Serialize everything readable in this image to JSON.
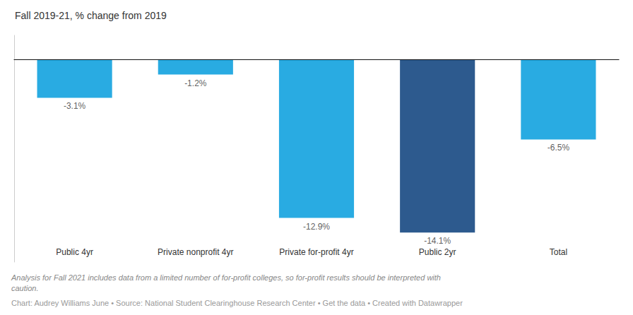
{
  "chart_data": {
    "type": "bar",
    "title": "Fall 2019-21, % change from 2019",
    "categories": [
      "Public 4yr",
      "Private nonprofit 4yr",
      "Private for-profit 4yr",
      "Public 2yr",
      "Total"
    ],
    "values": [
      -3.1,
      -1.2,
      -12.9,
      -14.1,
      -6.5
    ],
    "value_labels": [
      "-3.1%",
      "-1.2%",
      "-12.9%",
      "-14.1%",
      "-6.5%"
    ],
    "colors": [
      "#29abe2",
      "#29abe2",
      "#29abe2",
      "#2d5a8e",
      "#29abe2"
    ],
    "data_labels": true,
    "ylim": [
      -16.5,
      2.0
    ],
    "tick_labels": "x",
    "grid": false,
    "annotations": [
      "Analysis for Fall 2021 includes data from a limited number of for-profit colleges, so for-profit results should be interpreted with\ncaution.",
      "Chart: Audrey Williams June • Source: National Student Clearinghouse Research Center • Get the data • Created with Datawrapper"
    ]
  }
}
